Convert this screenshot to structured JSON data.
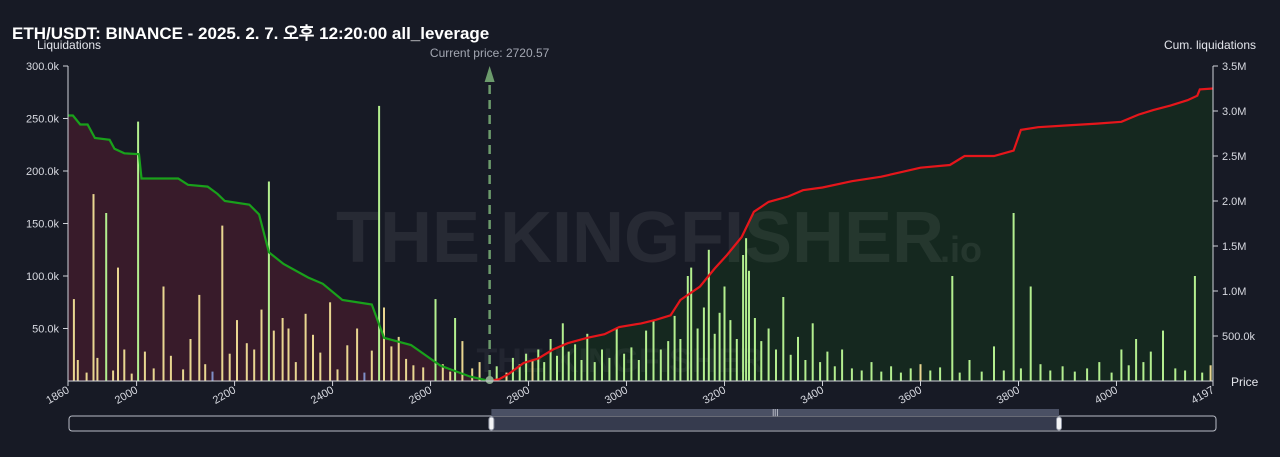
{
  "header": {
    "title": "ETH/USDT: BINANCE - 2025. 2. 7. 오후 12:20:00 all_leverage"
  },
  "watermark": {
    "brand": "THE KINGFISHER",
    "suffix": ".io"
  },
  "colors": {
    "background": "#171a25",
    "short_cum_line": "#19a11b",
    "long_cum_line": "#e5161b",
    "short_fill": "#3a1b2a",
    "long_fill": "#15291f",
    "bar_green": "#b3ef8f",
    "bar_yellow": "#e9d690",
    "bar_blue": "#7f8fc7",
    "current_price_marker": "#6c9b6c",
    "navigator_mask": "#3c4256"
  },
  "chart_data": {
    "type": "bar",
    "title": "ETH/USDT: BINANCE - 2025. 2. 7. 오후 12:20:00 all_leverage",
    "xlabel": "Price",
    "ylabel": "Liquidations",
    "y2label": "Cum. liquidations",
    "xlim": [
      1860,
      4197
    ],
    "ylim": [
      0,
      300000
    ],
    "y2lim": [
      0,
      3500000
    ],
    "x_ticks": [
      1860,
      2000,
      2200,
      2400,
      2600,
      2800,
      3000,
      3200,
      3400,
      3600,
      3800,
      4000,
      4197
    ],
    "x_tick_labels": [
      "1860",
      "2000",
      "2200",
      "2400",
      "2600",
      "2800",
      "3000",
      "3200",
      "3400",
      "3600",
      "3800",
      "4000",
      "4197"
    ],
    "y_ticks": [
      50000,
      100000,
      150000,
      200000,
      250000,
      300000
    ],
    "y_tick_labels": [
      "50.0k",
      "100.0k",
      "150.0k",
      "200.0k",
      "250.0k",
      "300.0k"
    ],
    "y2_ticks": [
      500000,
      1000000,
      1500000,
      2000000,
      2500000,
      3000000,
      3500000
    ],
    "y2_tick_labels": [
      "500.0k",
      "1.0M",
      "1.5M",
      "2.0M",
      "2.5M",
      "3.0M",
      "3.5M"
    ],
    "current_price": 2720.57,
    "current_price_label": "Current price: 2720.57",
    "grid": false,
    "bars": [
      {
        "x": 1872,
        "y": 78000,
        "c": "y"
      },
      {
        "x": 1880,
        "y": 20000,
        "c": "y"
      },
      {
        "x": 1898,
        "y": 8000,
        "c": "y"
      },
      {
        "x": 1912,
        "y": 178000,
        "c": "y"
      },
      {
        "x": 1920,
        "y": 22000,
        "c": "y"
      },
      {
        "x": 1938,
        "y": 160000,
        "c": "g"
      },
      {
        "x": 1952,
        "y": 10000,
        "c": "y"
      },
      {
        "x": 1962,
        "y": 108000,
        "c": "y"
      },
      {
        "x": 1975,
        "y": 30000,
        "c": "y"
      },
      {
        "x": 1990,
        "y": 7000,
        "c": "y"
      },
      {
        "x": 2003,
        "y": 247000,
        "c": "g"
      },
      {
        "x": 2017,
        "y": 28000,
        "c": "y"
      },
      {
        "x": 2035,
        "y": 12000,
        "c": "y"
      },
      {
        "x": 2055,
        "y": 90000,
        "c": "y"
      },
      {
        "x": 2070,
        "y": 24000,
        "c": "y"
      },
      {
        "x": 2095,
        "y": 11000,
        "c": "y"
      },
      {
        "x": 2110,
        "y": 40000,
        "c": "y"
      },
      {
        "x": 2128,
        "y": 82000,
        "c": "y"
      },
      {
        "x": 2140,
        "y": 16000,
        "c": "y"
      },
      {
        "x": 2155,
        "y": 9000,
        "c": "b"
      },
      {
        "x": 2175,
        "y": 148000,
        "c": "y"
      },
      {
        "x": 2190,
        "y": 26000,
        "c": "y"
      },
      {
        "x": 2205,
        "y": 58000,
        "c": "y"
      },
      {
        "x": 2225,
        "y": 36000,
        "c": "y"
      },
      {
        "x": 2240,
        "y": 30000,
        "c": "y"
      },
      {
        "x": 2255,
        "y": 68000,
        "c": "y"
      },
      {
        "x": 2270,
        "y": 190000,
        "c": "g"
      },
      {
        "x": 2280,
        "y": 48000,
        "c": "y"
      },
      {
        "x": 2298,
        "y": 60000,
        "c": "y"
      },
      {
        "x": 2310,
        "y": 50000,
        "c": "y"
      },
      {
        "x": 2325,
        "y": 18000,
        "c": "y"
      },
      {
        "x": 2345,
        "y": 64000,
        "c": "y"
      },
      {
        "x": 2360,
        "y": 44000,
        "c": "y"
      },
      {
        "x": 2375,
        "y": 27000,
        "c": "y"
      },
      {
        "x": 2395,
        "y": 75000,
        "c": "y"
      },
      {
        "x": 2410,
        "y": 11000,
        "c": "y"
      },
      {
        "x": 2430,
        "y": 34000,
        "c": "y"
      },
      {
        "x": 2450,
        "y": 50000,
        "c": "y"
      },
      {
        "x": 2465,
        "y": 8000,
        "c": "b"
      },
      {
        "x": 2480,
        "y": 29000,
        "c": "y"
      },
      {
        "x": 2495,
        "y": 262000,
        "c": "g"
      },
      {
        "x": 2505,
        "y": 70000,
        "c": "y"
      },
      {
        "x": 2520,
        "y": 33000,
        "c": "y"
      },
      {
        "x": 2535,
        "y": 42000,
        "c": "y"
      },
      {
        "x": 2550,
        "y": 21000,
        "c": "y"
      },
      {
        "x": 2565,
        "y": 15000,
        "c": "y"
      },
      {
        "x": 2585,
        "y": 13000,
        "c": "y"
      },
      {
        "x": 2610,
        "y": 78000,
        "c": "g"
      },
      {
        "x": 2625,
        "y": 16000,
        "c": "y"
      },
      {
        "x": 2640,
        "y": 9000,
        "c": "y"
      },
      {
        "x": 2650,
        "y": 60000,
        "c": "g"
      },
      {
        "x": 2665,
        "y": 38000,
        "c": "y"
      },
      {
        "x": 2685,
        "y": 12000,
        "c": "y"
      },
      {
        "x": 2700,
        "y": 18000,
        "c": "y"
      },
      {
        "x": 2735,
        "y": 14000,
        "c": "g"
      },
      {
        "x": 2755,
        "y": 8000,
        "c": "y"
      },
      {
        "x": 2768,
        "y": 22000,
        "c": "g"
      },
      {
        "x": 2782,
        "y": 16000,
        "c": "g"
      },
      {
        "x": 2795,
        "y": 26000,
        "c": "g"
      },
      {
        "x": 2808,
        "y": 20000,
        "c": "y"
      },
      {
        "x": 2820,
        "y": 30000,
        "c": "g"
      },
      {
        "x": 2832,
        "y": 18000,
        "c": "g"
      },
      {
        "x": 2845,
        "y": 40000,
        "c": "g"
      },
      {
        "x": 2858,
        "y": 24000,
        "c": "g"
      },
      {
        "x": 2870,
        "y": 55000,
        "c": "g"
      },
      {
        "x": 2882,
        "y": 28000,
        "c": "g"
      },
      {
        "x": 2895,
        "y": 35000,
        "c": "g"
      },
      {
        "x": 2908,
        "y": 20000,
        "c": "g"
      },
      {
        "x": 2920,
        "y": 45000,
        "c": "g"
      },
      {
        "x": 2935,
        "y": 18000,
        "c": "g"
      },
      {
        "x": 2950,
        "y": 30000,
        "c": "g"
      },
      {
        "x": 2965,
        "y": 22000,
        "c": "g"
      },
      {
        "x": 2980,
        "y": 50000,
        "c": "g"
      },
      {
        "x": 2995,
        "y": 26000,
        "c": "g"
      },
      {
        "x": 3010,
        "y": 32000,
        "c": "g"
      },
      {
        "x": 3025,
        "y": 20000,
        "c": "g"
      },
      {
        "x": 3040,
        "y": 48000,
        "c": "g"
      },
      {
        "x": 3055,
        "y": 58000,
        "c": "g"
      },
      {
        "x": 3070,
        "y": 30000,
        "c": "g"
      },
      {
        "x": 3085,
        "y": 38000,
        "c": "g"
      },
      {
        "x": 3098,
        "y": 62000,
        "c": "g"
      },
      {
        "x": 3110,
        "y": 40000,
        "c": "g"
      },
      {
        "x": 3125,
        "y": 100000,
        "c": "g"
      },
      {
        "x": 3132,
        "y": 108000,
        "c": "g"
      },
      {
        "x": 3145,
        "y": 50000,
        "c": "g"
      },
      {
        "x": 3158,
        "y": 70000,
        "c": "g"
      },
      {
        "x": 3168,
        "y": 125000,
        "c": "g"
      },
      {
        "x": 3180,
        "y": 45000,
        "c": "g"
      },
      {
        "x": 3190,
        "y": 65000,
        "c": "g"
      },
      {
        "x": 3200,
        "y": 90000,
        "c": "g"
      },
      {
        "x": 3212,
        "y": 58000,
        "c": "g"
      },
      {
        "x": 3225,
        "y": 40000,
        "c": "g"
      },
      {
        "x": 3238,
        "y": 120000,
        "c": "g"
      },
      {
        "x": 3244,
        "y": 136000,
        "c": "g"
      },
      {
        "x": 3250,
        "y": 105000,
        "c": "g"
      },
      {
        "x": 3262,
        "y": 60000,
        "c": "g"
      },
      {
        "x": 3275,
        "y": 38000,
        "c": "g"
      },
      {
        "x": 3290,
        "y": 50000,
        "c": "g"
      },
      {
        "x": 3305,
        "y": 30000,
        "c": "g"
      },
      {
        "x": 3320,
        "y": 80000,
        "c": "g"
      },
      {
        "x": 3335,
        "y": 25000,
        "c": "g"
      },
      {
        "x": 3350,
        "y": 42000,
        "c": "g"
      },
      {
        "x": 3365,
        "y": 20000,
        "c": "g"
      },
      {
        "x": 3380,
        "y": 55000,
        "c": "g"
      },
      {
        "x": 3395,
        "y": 18000,
        "c": "g"
      },
      {
        "x": 3410,
        "y": 28000,
        "c": "g"
      },
      {
        "x": 3425,
        "y": 14000,
        "c": "g"
      },
      {
        "x": 3440,
        "y": 30000,
        "c": "g"
      },
      {
        "x": 3460,
        "y": 12000,
        "c": "g"
      },
      {
        "x": 3480,
        "y": 10000,
        "c": "g"
      },
      {
        "x": 3500,
        "y": 18000,
        "c": "g"
      },
      {
        "x": 3520,
        "y": 9000,
        "c": "g"
      },
      {
        "x": 3540,
        "y": 14000,
        "c": "g"
      },
      {
        "x": 3560,
        "y": 8000,
        "c": "g"
      },
      {
        "x": 3580,
        "y": 12000,
        "c": "g"
      },
      {
        "x": 3600,
        "y": 16000,
        "c": "y"
      },
      {
        "x": 3620,
        "y": 10000,
        "c": "g"
      },
      {
        "x": 3640,
        "y": 13000,
        "c": "g"
      },
      {
        "x": 3665,
        "y": 100000,
        "c": "g"
      },
      {
        "x": 3680,
        "y": 8000,
        "c": "g"
      },
      {
        "x": 3700,
        "y": 20000,
        "c": "g"
      },
      {
        "x": 3725,
        "y": 9000,
        "c": "g"
      },
      {
        "x": 3750,
        "y": 33000,
        "c": "g"
      },
      {
        "x": 3770,
        "y": 10000,
        "c": "g"
      },
      {
        "x": 3790,
        "y": 160000,
        "c": "g"
      },
      {
        "x": 3805,
        "y": 12000,
        "c": "g"
      },
      {
        "x": 3825,
        "y": 90000,
        "c": "g"
      },
      {
        "x": 3845,
        "y": 16000,
        "c": "g"
      },
      {
        "x": 3865,
        "y": 10000,
        "c": "g"
      },
      {
        "x": 3890,
        "y": 14000,
        "c": "g"
      },
      {
        "x": 3915,
        "y": 9000,
        "c": "g"
      },
      {
        "x": 3940,
        "y": 12000,
        "c": "g"
      },
      {
        "x": 3965,
        "y": 18000,
        "c": "g"
      },
      {
        "x": 3990,
        "y": 8000,
        "c": "g"
      },
      {
        "x": 4010,
        "y": 30000,
        "c": "g"
      },
      {
        "x": 4025,
        "y": 15000,
        "c": "g"
      },
      {
        "x": 4040,
        "y": 40000,
        "c": "g"
      },
      {
        "x": 4055,
        "y": 18000,
        "c": "g"
      },
      {
        "x": 4070,
        "y": 28000,
        "c": "g"
      },
      {
        "x": 4095,
        "y": 48000,
        "c": "g"
      },
      {
        "x": 4120,
        "y": 12000,
        "c": "g"
      },
      {
        "x": 4140,
        "y": 10000,
        "c": "g"
      },
      {
        "x": 4160,
        "y": 100000,
        "c": "g"
      },
      {
        "x": 4175,
        "y": 8000,
        "c": "g"
      },
      {
        "x": 4192,
        "y": 15000,
        "c": "y"
      }
    ],
    "short_cumulative": [
      [
        1860,
        2950000
      ],
      [
        1870,
        2950000
      ],
      [
        1885,
        2850000
      ],
      [
        1900,
        2850000
      ],
      [
        1915,
        2700000
      ],
      [
        1945,
        2680000
      ],
      [
        1955,
        2580000
      ],
      [
        1975,
        2530000
      ],
      [
        2005,
        2520000
      ],
      [
        2010,
        2250000
      ],
      [
        2085,
        2250000
      ],
      [
        2105,
        2180000
      ],
      [
        2145,
        2160000
      ],
      [
        2165,
        2080000
      ],
      [
        2180,
        2000000
      ],
      [
        2230,
        1960000
      ],
      [
        2250,
        1850000
      ],
      [
        2270,
        1430000
      ],
      [
        2300,
        1300000
      ],
      [
        2350,
        1150000
      ],
      [
        2380,
        1080000
      ],
      [
        2420,
        900000
      ],
      [
        2480,
        850000
      ],
      [
        2505,
        480000
      ],
      [
        2560,
        400000
      ],
      [
        2620,
        170000
      ],
      [
        2680,
        50000
      ],
      [
        2720,
        0
      ]
    ],
    "long_cumulative": [
      [
        2720,
        0
      ],
      [
        2740,
        20000
      ],
      [
        2760,
        80000
      ],
      [
        2790,
        200000
      ],
      [
        2820,
        250000
      ],
      [
        2850,
        350000
      ],
      [
        2880,
        420000
      ],
      [
        2920,
        480000
      ],
      [
        2955,
        520000
      ],
      [
        2985,
        600000
      ],
      [
        3030,
        640000
      ],
      [
        3060,
        680000
      ],
      [
        3090,
        730000
      ],
      [
        3110,
        900000
      ],
      [
        3150,
        1050000
      ],
      [
        3180,
        1250000
      ],
      [
        3205,
        1400000
      ],
      [
        3235,
        1600000
      ],
      [
        3260,
        1880000
      ],
      [
        3290,
        1990000
      ],
      [
        3330,
        2050000
      ],
      [
        3360,
        2120000
      ],
      [
        3400,
        2150000
      ],
      [
        3460,
        2220000
      ],
      [
        3520,
        2270000
      ],
      [
        3560,
        2320000
      ],
      [
        3600,
        2370000
      ],
      [
        3660,
        2400000
      ],
      [
        3690,
        2500000
      ],
      [
        3750,
        2500000
      ],
      [
        3790,
        2560000
      ],
      [
        3805,
        2790000
      ],
      [
        3840,
        2820000
      ],
      [
        3900,
        2840000
      ],
      [
        3960,
        2860000
      ],
      [
        4010,
        2880000
      ],
      [
        4045,
        2960000
      ],
      [
        4075,
        3010000
      ],
      [
        4110,
        3060000
      ],
      [
        4145,
        3120000
      ],
      [
        4165,
        3170000
      ],
      [
        4170,
        3240000
      ],
      [
        4197,
        3250000
      ]
    ]
  }
}
